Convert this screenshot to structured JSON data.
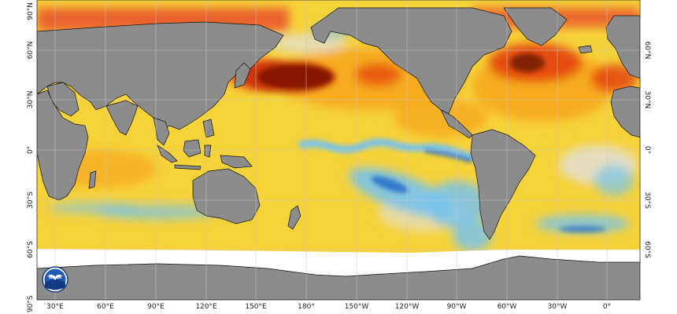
{
  "map": {
    "type": "sea-surface-temperature-anomaly",
    "projection": "plate-carree",
    "grid": true,
    "colors": {
      "land": "#8c8c8c",
      "ice": "#ffffff",
      "strong_warm": "#5a0a00",
      "warm": "#e23b10",
      "moderate_warm": "#f6a21a",
      "slight_warm": "#f7d33a",
      "neutral": "#e0e0e0",
      "cool": "#79c3ec",
      "strong_cool": "#1e68c8",
      "coastline": "#111111"
    },
    "lon_ticks": [
      "30°E",
      "60°E",
      "90°E",
      "120°E",
      "150°E",
      "180°",
      "150°W",
      "120°W",
      "90°W",
      "60°W",
      "30°W",
      "0°"
    ],
    "lat_ticks_left": [
      "90°N",
      "60°N",
      "30°N",
      "0°",
      "30°S",
      "60°S",
      "90°S"
    ],
    "lat_ticks_right": [
      "60°N",
      "30°N",
      "0°",
      "30°S",
      "60°S"
    ]
  },
  "logo": {
    "text": "NOAA",
    "icon": "noaa-seagull-logo"
  }
}
